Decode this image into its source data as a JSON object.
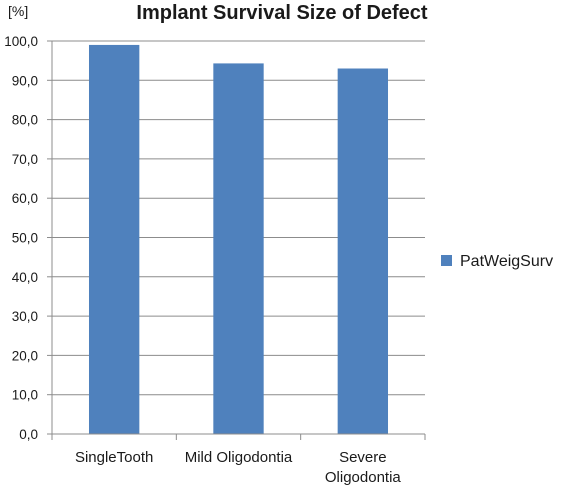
{
  "chart_data": {
    "type": "bar",
    "title": "Implant Survival  Size of Defect",
    "y_unit_label": "[%]",
    "categories": [
      [
        "SingleTooth"
      ],
      [
        "Mild Oligodontia"
      ],
      [
        "Severe",
        "Oligodontia"
      ]
    ],
    "series": [
      {
        "name": "PatWeigSurv",
        "values": [
          99.0,
          94.3,
          93.0
        ],
        "color": "#4f81bd"
      }
    ],
    "ylim": [
      0,
      100
    ],
    "y_ticks": [
      "0,0",
      "10,0",
      "20,0",
      "30,0",
      "40,0",
      "50,0",
      "60,0",
      "70,0",
      "80,0",
      "90,0",
      "100,0"
    ],
    "grid": true,
    "legend_position": "right"
  }
}
